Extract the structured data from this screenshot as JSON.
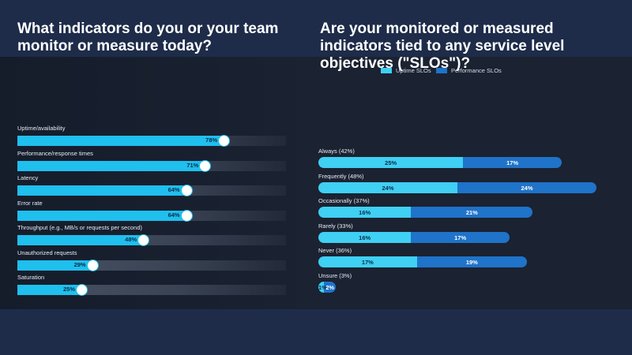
{
  "colors": {
    "background": "#1e2c4a",
    "panel": "#1b2231",
    "uptime": "#3fd0f4",
    "performance": "#1f73c9",
    "left_fill": "#1fbfee"
  },
  "chart_data": [
    {
      "type": "bar",
      "orientation": "horizontal",
      "title": "What indicators do you or your team monitor or measure today?",
      "categories": [
        "Uptime/availability",
        "Performance/response times",
        "Latency",
        "Error rate",
        "Throughput (e.g., MB/s or requests per second)",
        "Unauthorized requests",
        "Saturation"
      ],
      "values": [
        78,
        71,
        64,
        64,
        48,
        29,
        25
      ],
      "value_labels": [
        "78%",
        "71%",
        "64%",
        "64%",
        "48%",
        "29%",
        "25%"
      ],
      "xlim": [
        0,
        100
      ],
      "grid": false
    },
    {
      "type": "bar",
      "orientation": "horizontal",
      "stacked": true,
      "title": "Are your monitored or measured indicators tied to any service level objectives (\"SLOs\")?",
      "legend_position": "top",
      "categories": [
        "Always (42%)",
        "Frequently (48%)",
        "Occasionally (37%)",
        "Rarely (33%)",
        "Never (36%)",
        "Unsure (3%)"
      ],
      "series": [
        {
          "name": "Uptime SLOs",
          "values": [
            25,
            24,
            16,
            16,
            17,
            1
          ],
          "value_labels": [
            "25%",
            "24%",
            "16%",
            "16%",
            "17%",
            "1%"
          ]
        },
        {
          "name": "Performance SLOs",
          "values": [
            17,
            24,
            21,
            17,
            19,
            2
          ],
          "value_labels": [
            "17%",
            "24%",
            "21%",
            "17%",
            "19%",
            "2%"
          ]
        }
      ],
      "xlim": [
        0,
        48
      ],
      "grid": false
    }
  ]
}
